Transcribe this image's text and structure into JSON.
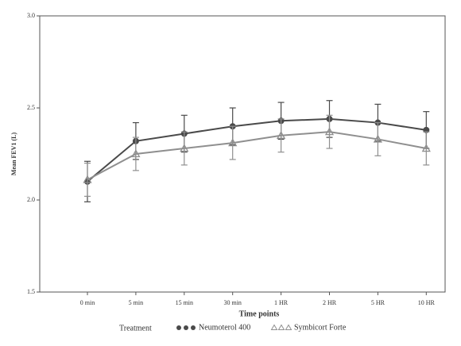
{
  "chart_data": {
    "type": "line",
    "x_label": "Time points",
    "y_label": "Mean FEV1 (L)",
    "legend_title": "Treatment",
    "categories": [
      "0 min",
      "5 min",
      "15 min",
      "30 min",
      "1 HR",
      "2 HR",
      "5 HR",
      "10 HR"
    ],
    "series": [
      {
        "name": "Neumoterol 400",
        "color": "#4a4a4a",
        "marker": "circle",
        "values": [
          2.1,
          2.32,
          2.36,
          2.4,
          2.43,
          2.44,
          2.42,
          2.38
        ],
        "errors": [
          0.11,
          0.1,
          0.1,
          0.1,
          0.1,
          0.1,
          0.1,
          0.1
        ]
      },
      {
        "name": "Symbicort Forte",
        "color": "#8f8f8f",
        "marker": "triangle",
        "values": [
          2.11,
          2.25,
          2.28,
          2.31,
          2.35,
          2.37,
          2.33,
          2.28
        ],
        "errors": [
          0.09,
          0.09,
          0.09,
          0.09,
          0.09,
          0.09,
          0.09,
          0.09
        ]
      }
    ],
    "ylim": [
      1.5,
      3.0
    ],
    "yticks": [
      1.5,
      {
        "value": 2.0,
        "label": "2.0"
      },
      2.5,
      {
        "value": 3.0,
        "label": "3.0"
      }
    ]
  }
}
